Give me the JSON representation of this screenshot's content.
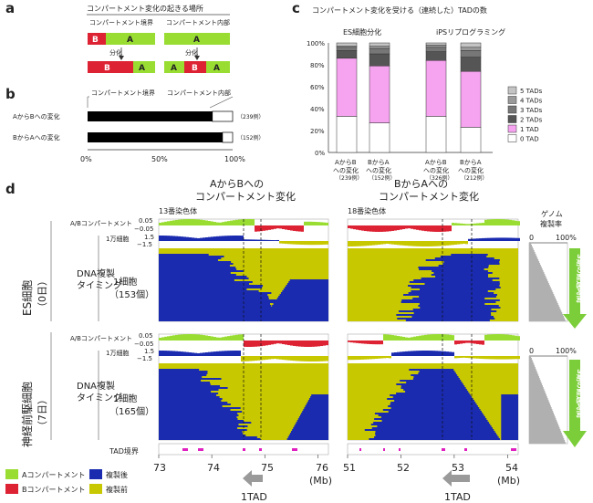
{
  "panel_a": {
    "label": "a",
    "title": "コンパートメント変化の起きる場所",
    "col1_title": "コンパートメント境界",
    "col2_title": "コンパートメント内部",
    "bar_B": "B",
    "bar_A": "A",
    "arrow_label": "分化"
  },
  "panel_b": {
    "label": "b",
    "header_boundary": "コンパートメント境界",
    "header_inside": "コンパートメント内部",
    "rows": [
      {
        "label": "AからBへの変化",
        "n": "（239例）"
      },
      {
        "label": "BからAへの変化",
        "n": "（152例）"
      }
    ],
    "xticks": [
      "0%",
      "50%",
      "100%"
    ]
  },
  "panel_c": {
    "label": "c",
    "title": "コンパートメント変化を受ける（連続した）TADの数",
    "group1": "ES細胞分化",
    "group2": "iPSリプログラミング",
    "yticks": [
      "100%",
      "80%",
      "60%",
      "40%",
      "20%",
      "0%"
    ],
    "legend": [
      "5 TADs",
      "4 TADs",
      "3 TADs",
      "2 TADs",
      "1 TAD",
      "0 TAD"
    ],
    "bars": [
      {
        "line1": "AからB",
        "line2": "への変化",
        "n": "（239例）"
      },
      {
        "line1": "BからA",
        "line2": "への変化",
        "n": "（152例）"
      },
      {
        "line1": "AからB",
        "line2": "への変化",
        "n": "（326例）"
      },
      {
        "line1": "BからA",
        "line2": "への変化",
        "n": "（212例）"
      }
    ]
  },
  "panel_d": {
    "label": "d",
    "left_title1": "AからBへの",
    "left_title2": "コンパートメント変化",
    "right_title1": "BからAへの",
    "right_title2": "コンパートメント変化",
    "chr_left": "13番染色体",
    "chr_right": "18番染色体",
    "ab_track": "A/Bコンパートメント",
    "ab_top": "0.05",
    "ab_bot": "−0.05",
    "tenk": "1万細胞",
    "rt_top": "1.5",
    "rt_bot": "−1.5",
    "row1": "ES細胞",
    "row1b": "（0日）",
    "row2": "神経前駆細胞",
    "row2b": "（7日）",
    "rep_timing1": "DNA複製",
    "rep_timing2": "タイミング",
    "single1": "1細胞",
    "single1n": "（153個）",
    "single2n": "（165個）",
    "tad": "TAD境界",
    "x_left": [
      "73",
      "74",
      "75",
      "76"
    ],
    "x_right": [
      "51",
      "52",
      "53",
      "54"
    ],
    "mb": "(Mb)",
    "one_tad": "1TAD",
    "genome_title1": "ゲノム",
    "genome_title2": "複製率",
    "pct0": "0",
    "pct100": "100%",
    "s_phase": "S期の経過時間"
  },
  "legend_d": {
    "a_comp": "Aコンパートメント",
    "b_comp": "Bコンパートメント",
    "after": "複製後",
    "before": "複製前"
  },
  "colors": {
    "a_green": "#99dd33",
    "b_red": "#dd2233",
    "replicated_blue": "#1a2bb0",
    "unreplicated_yellow": "#c8c800",
    "tad_magenta": "#e020c0",
    "arrow_green": "#7ccd3a",
    "legend_pink": "#f6a3f0"
  },
  "chart_data": {
    "type": "bar",
    "stacked": true,
    "categories": [
      "AからBへの変化 (ES細胞分化)",
      "BからAへの変化 (ES細胞分化)",
      "AからBへの変化 (iPSリプログラミング)",
      "BからAへの変化 (iPSリプログラミング)"
    ],
    "series": [
      {
        "name": "0 TAD",
        "values": [
          33,
          27,
          33,
          23
        ]
      },
      {
        "name": "1 TAD",
        "values": [
          53,
          52,
          51,
          51
        ]
      },
      {
        "name": "2 TADs",
        "values": [
          7,
          11,
          8,
          13
        ]
      },
      {
        "name": "3 TADs",
        "values": [
          3,
          5,
          4,
          6
        ]
      },
      {
        "name": "4 TADs",
        "values": [
          1,
          2,
          2,
          3
        ]
      },
      {
        "name": "5 TADs",
        "values": [
          3,
          3,
          2,
          4
        ]
      }
    ],
    "ylim": [
      0,
      100
    ],
    "yticks": [
      "0%",
      "20%",
      "40%",
      "60%",
      "80%",
      "100%"
    ]
  },
  "chart_b": {
    "type": "bar",
    "orientation": "horizontal",
    "categories": [
      "AからBへの変化",
      "BからAへの変化"
    ],
    "series": [
      {
        "name": "コンパートメント境界",
        "values": [
          86,
          93
        ]
      },
      {
        "name": "コンパートメント内部",
        "values": [
          14,
          7
        ]
      }
    ],
    "xlim": [
      0,
      100
    ]
  }
}
